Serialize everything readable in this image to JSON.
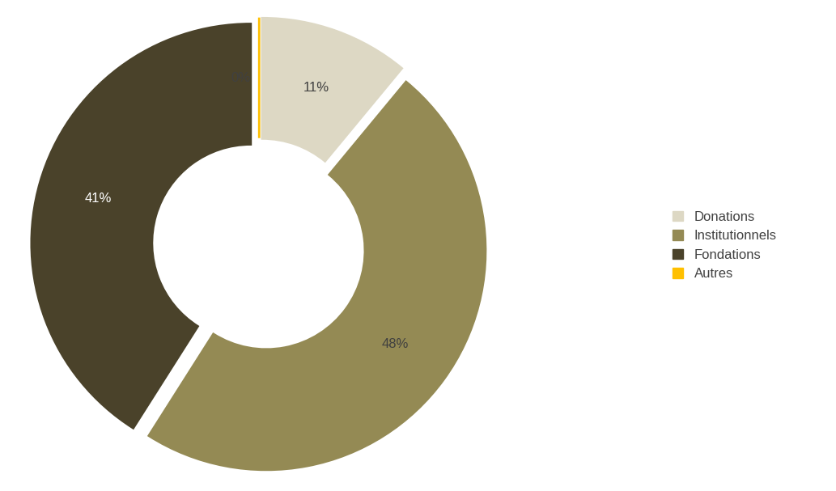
{
  "chart_data": {
    "type": "donut",
    "categories": [
      "Donations",
      "Institutionnels",
      "Fondations",
      "Autres"
    ],
    "values": [
      11,
      48,
      41,
      0
    ],
    "value_labels": [
      "11%",
      "48%",
      "41%",
      "0%"
    ],
    "colors": [
      "#ddd8c4",
      "#948a54",
      "#4a422a",
      "#ffc000"
    ],
    "data_labels": true,
    "legend": "right"
  }
}
